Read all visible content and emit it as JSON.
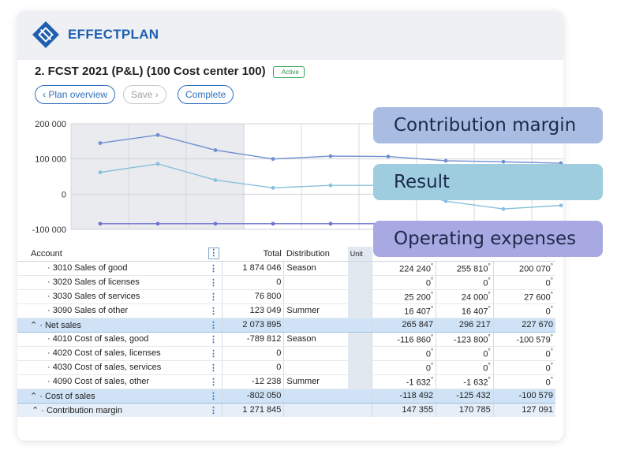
{
  "brand": "EFFECTPLAN",
  "plan_title": "2. FCST 2021 (P&L) (100 Cost center 100)",
  "status_badge": "Active",
  "buttons": {
    "plan_overview": "Plan overview",
    "save": "Save",
    "complete": "Complete"
  },
  "chart_data": {
    "type": "line",
    "y_ticks": [
      "200 000",
      "100 000",
      "0",
      "-100 000"
    ],
    "ylim": [
      -100000,
      200000
    ],
    "grid": true,
    "series": [
      {
        "name": "Contribution margin",
        "color": "#6f8fd0",
        "values": [
          145000,
          168000,
          125000,
          100000,
          108000,
          107000,
          95000,
          92000,
          88000,
          90000
        ]
      },
      {
        "name": "Result",
        "color": "#8ac0dc",
        "values": [
          62000,
          86000,
          40000,
          18000,
          25000,
          25000,
          -20000,
          -42000,
          -32000,
          -24000
        ]
      },
      {
        "name": "Operating expenses",
        "color": "#6f6fd0",
        "values": [
          -84000,
          -84000,
          -84000,
          -84000,
          -84000,
          -84000,
          -84000,
          -84000,
          -84000,
          -84000
        ]
      }
    ]
  },
  "callouts": [
    "Contribution margin",
    "Result",
    "Operating expenses"
  ],
  "table": {
    "headers": {
      "account": "Account",
      "total": "Total",
      "distribution": "Distribution",
      "unit": "Unit"
    },
    "rows": [
      {
        "account": "· 3010 Sales of good",
        "total": "1 874 046",
        "dist": "Season",
        "m1": "224 240",
        "m2": "255 810",
        "m3": "200 070"
      },
      {
        "account": "· 3020 Sales of licenses",
        "total": "0",
        "dist": "",
        "m1": "0",
        "m2": "0",
        "m3": "0"
      },
      {
        "account": "· 3030 Sales of services",
        "total": "76 800",
        "dist": "",
        "m1": "25 200",
        "m2": "24 000",
        "m3": "27 600"
      },
      {
        "account": "· 3090 Sales of other",
        "total": "123 049",
        "dist": "Summer",
        "m1": "16 407",
        "m2": "16 407",
        "m3": "0"
      },
      {
        "account": "Net sales",
        "total": "2 073 895",
        "dist": "",
        "m1": "265 847",
        "m2": "296 217",
        "m3": "227 670"
      },
      {
        "account": "· 4010 Cost of sales, good",
        "total": "-789 812",
        "dist": "Season",
        "m1": "-116 860",
        "m2": "-123 800",
        "m3": "-100 579"
      },
      {
        "account": "· 4020 Cost of sales, licenses",
        "total": "0",
        "dist": "",
        "m1": "0",
        "m2": "0",
        "m3": "0"
      },
      {
        "account": "· 4030 Cost of sales, services",
        "total": "0",
        "dist": "",
        "m1": "0",
        "m2": "0",
        "m3": "0"
      },
      {
        "account": "· 4090 Cost of sales, other",
        "total": "-12 238",
        "dist": "Summer",
        "m1": "-1 632",
        "m2": "-1 632",
        "m3": "0"
      },
      {
        "account": "Cost of sales",
        "total": "-802 050",
        "dist": "",
        "m1": "-118 492",
        "m2": "-125 432",
        "m3": "-100 579"
      },
      {
        "account": "Contribution margin",
        "total": "1 271 845",
        "dist": "",
        "m1": "147 355",
        "m2": "170 785",
        "m3": "127 091"
      }
    ]
  }
}
